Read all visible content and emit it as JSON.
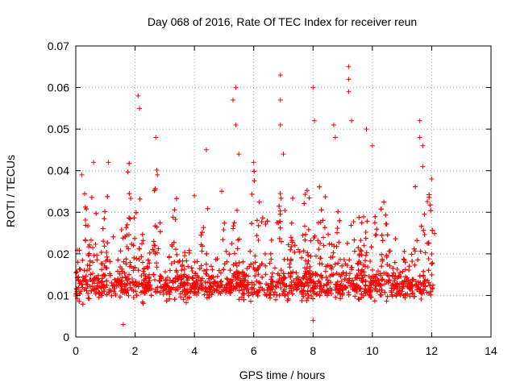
{
  "chart_data": {
    "type": "scatter",
    "title": "Day 068 of 2016, Rate Of TEC Index for receiver reun",
    "xlabel": "GPS time / hours",
    "ylabel": "ROTI / TECUs",
    "xlim": [
      0,
      14
    ],
    "ylim": [
      0,
      0.07
    ],
    "xticks": [
      0,
      2,
      4,
      6,
      8,
      10,
      12,
      14
    ],
    "yticks": [
      0,
      0.01,
      0.02,
      0.03,
      0.04,
      0.05,
      0.06,
      0.07
    ],
    "xtick_labels": [
      "0",
      "2",
      "4",
      "6",
      "8",
      "10",
      "12",
      "14"
    ],
    "ytick_labels": [
      "0",
      "0.01",
      "0.02",
      "0.03",
      "0.04",
      "0.05",
      "0.06",
      "0.07"
    ],
    "grid": true,
    "marker": "+",
    "color": "#ff0000",
    "data_range_hours": [
      0,
      12.1
    ],
    "notable_points": [
      {
        "x": 0.2,
        "y": 0.039
      },
      {
        "x": 0.6,
        "y": 0.042
      },
      {
        "x": 1.1,
        "y": 0.042
      },
      {
        "x": 2.1,
        "y": 0.058
      },
      {
        "x": 2.15,
        "y": 0.055
      },
      {
        "x": 2.7,
        "y": 0.048
      },
      {
        "x": 2.75,
        "y": 0.039
      },
      {
        "x": 4.0,
        "y": 0.034
      },
      {
        "x": 4.4,
        "y": 0.045
      },
      {
        "x": 5.4,
        "y": 0.06
      },
      {
        "x": 5.3,
        "y": 0.057
      },
      {
        "x": 5.4,
        "y": 0.051
      },
      {
        "x": 5.5,
        "y": 0.044
      },
      {
        "x": 6.0,
        "y": 0.042
      },
      {
        "x": 6.9,
        "y": 0.063
      },
      {
        "x": 6.9,
        "y": 0.057
      },
      {
        "x": 6.9,
        "y": 0.051
      },
      {
        "x": 7.0,
        "y": 0.044
      },
      {
        "x": 8.0,
        "y": 0.06
      },
      {
        "x": 8.05,
        "y": 0.052
      },
      {
        "x": 8.7,
        "y": 0.051
      },
      {
        "x": 8.75,
        "y": 0.048
      },
      {
        "x": 9.2,
        "y": 0.065
      },
      {
        "x": 9.2,
        "y": 0.062
      },
      {
        "x": 9.2,
        "y": 0.059
      },
      {
        "x": 9.3,
        "y": 0.052
      },
      {
        "x": 9.8,
        "y": 0.05
      },
      {
        "x": 10.0,
        "y": 0.046
      },
      {
        "x": 11.6,
        "y": 0.052
      },
      {
        "x": 11.6,
        "y": 0.048
      },
      {
        "x": 11.7,
        "y": 0.046
      },
      {
        "x": 11.7,
        "y": 0.041
      },
      {
        "x": 12.0,
        "y": 0.038
      },
      {
        "x": 1.6,
        "y": 0.003
      },
      {
        "x": 8.0,
        "y": 0.004
      }
    ],
    "bulk_distribution": {
      "description_baseline_y": 0.012,
      "baseline_y_spread": 0.005,
      "minimum_y": 0.003
    }
  }
}
